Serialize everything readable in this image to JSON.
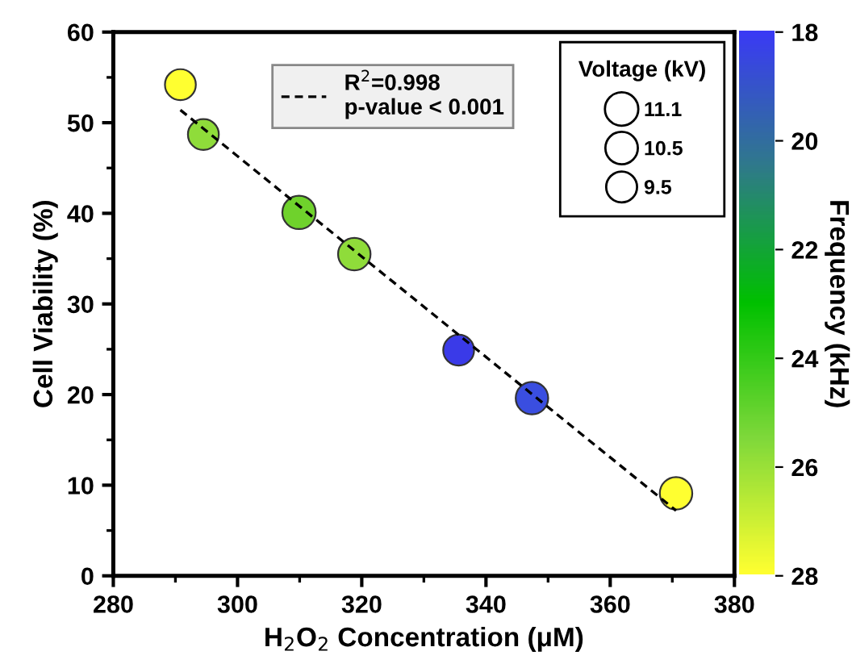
{
  "chart_data": {
    "type": "bubble",
    "xlabel": "H$_{2}$O$_{2}$ Concentration (μM)",
    "ylabel": "Cell Viability (%)",
    "clabel": "Frequency (kHz)",
    "legend_title": "Voltage (kV)",
    "xlim": [
      280,
      380
    ],
    "xticks": [
      280,
      300,
      320,
      340,
      360,
      380
    ],
    "ylim": [
      0,
      60
    ],
    "yticks": [
      0,
      10,
      20,
      30,
      40,
      50,
      60
    ],
    "clim": [
      28,
      18
    ],
    "cticks": [
      18,
      20,
      22,
      24,
      26,
      28
    ],
    "size_legend": [
      11.1,
      10.5,
      9.5
    ],
    "legend": "top",
    "grid": false,
    "series": [
      {
        "colors": [
          "#ffff30",
          "#8fdc3a",
          "#6fd22c",
          "#8fdc3a",
          "#3a3ae8",
          "#3a4ee0",
          "#ffff30"
        ],
        "x": [
          290.8,
          294.5,
          309.9,
          318.8,
          335.6,
          347.4,
          370.6
        ],
        "values": [
          54.2,
          48.7,
          40.1,
          35.5,
          24.9,
          19.6,
          9.1
        ],
        "sizes": [
          9.5,
          9.5,
          11.1,
          10.5,
          9.5,
          10.5,
          10.5
        ]
      },
      {
        "type": "line",
        "name": "R$^{2}$=0.998\np-value < 0.001",
        "color": "#000000",
        "line_style": "dashed",
        "x": [
          290.8,
          370.6
        ],
        "values": [
          51.4,
          7.2
        ]
      }
    ]
  }
}
